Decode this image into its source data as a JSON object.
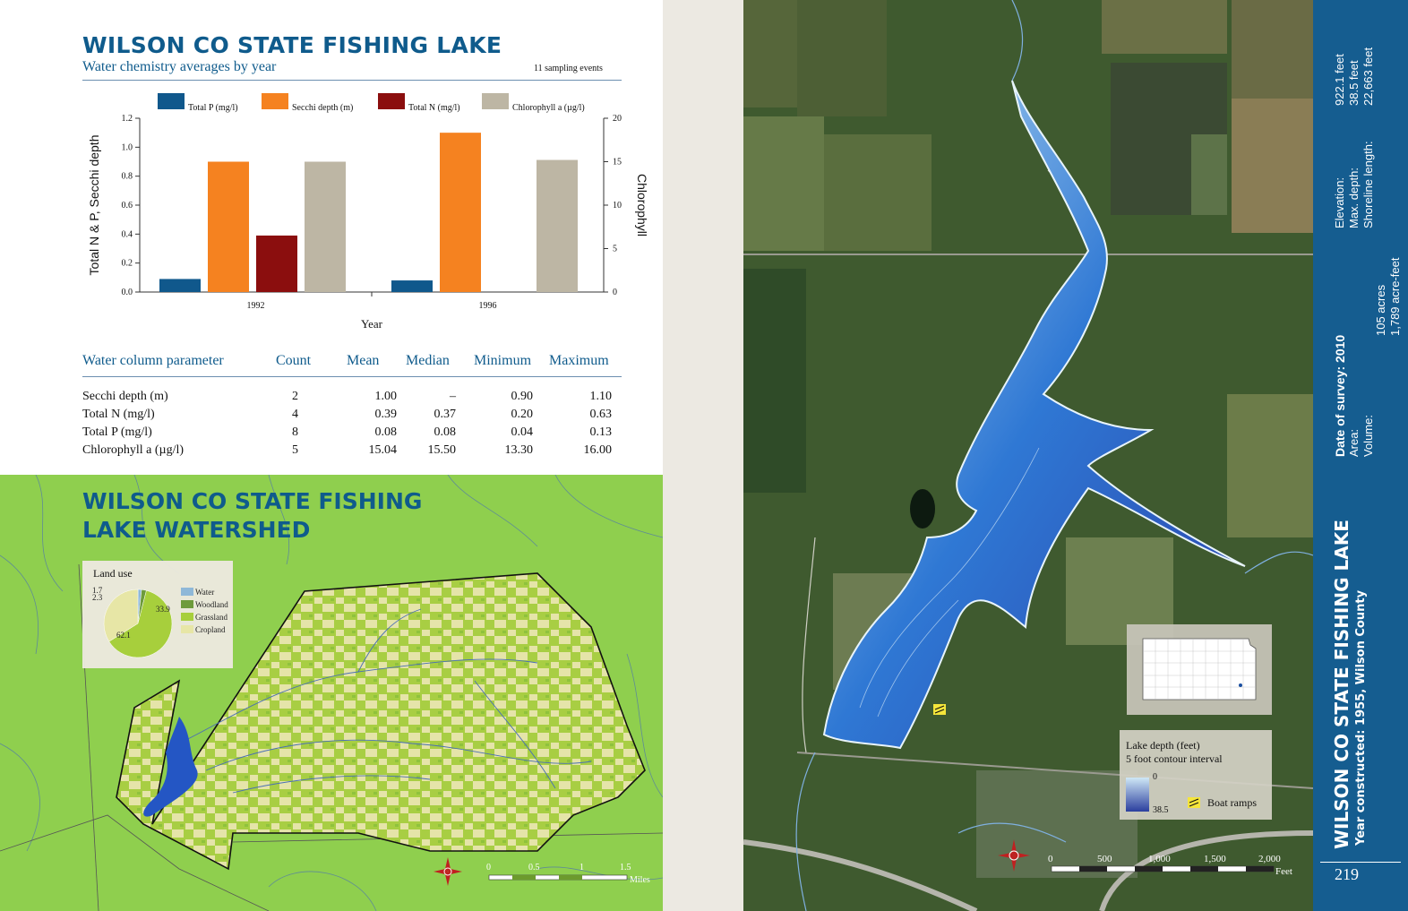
{
  "title": "WILSON CO STATE FISHING LAKE",
  "subtitle": "Water chemistry averages by year",
  "sampling_events": "11 sampling events",
  "chart_data": {
    "type": "bar",
    "categories": [
      "1992",
      "1996"
    ],
    "xlabel": "Year",
    "ylabel": "Total N & P, Secchi depth",
    "y2label": "Chlorophyll",
    "ylim": [
      0,
      1.2
    ],
    "y2lim": [
      0,
      20
    ],
    "yticks": [
      "0.0",
      "0.2",
      "0.4",
      "0.6",
      "0.8",
      "1.0",
      "1.2"
    ],
    "y2ticks": [
      "0",
      "5",
      "10",
      "15",
      "20"
    ],
    "legend_position": "top",
    "series": [
      {
        "name": "Total P (mg/l)",
        "color": "#10588c",
        "axis": "left",
        "values": [
          0.09,
          0.08
        ]
      },
      {
        "name": "Secchi depth (m)",
        "color": "#f58220",
        "axis": "left",
        "values": [
          0.9,
          1.1
        ]
      },
      {
        "name": "Total N (mg/l)",
        "color": "#8b0e0e",
        "axis": "left",
        "values": [
          0.39,
          null
        ]
      },
      {
        "name": "Chlorophyll a (µg/l)",
        "color": "#bdb6a4",
        "axis": "right",
        "values": [
          15.0,
          15.2
        ]
      }
    ]
  },
  "table": {
    "headers": [
      "Water column parameter",
      "Count",
      "Mean",
      "Median",
      "Minimum",
      "Maximum"
    ],
    "rows": [
      [
        "Secchi depth (m)",
        "2",
        "1.00",
        "–",
        "0.90",
        "1.10"
      ],
      [
        "Total N (mg/l)",
        "4",
        "0.39",
        "0.37",
        "0.20",
        "0.63"
      ],
      [
        "Total P (mg/l)",
        "8",
        "0.08",
        "0.08",
        "0.04",
        "0.13"
      ],
      [
        "Chlorophyll a (µg/l)",
        "5",
        "15.04",
        "15.50",
        "13.30",
        "16.00"
      ]
    ]
  },
  "watershed": {
    "title_line1": "WILSON CO STATE FISHING",
    "title_line2": "LAKE WATERSHED",
    "land_use": {
      "title": "Land use",
      "slices": [
        {
          "name": "Water",
          "value": 1.7,
          "color": "#8fb8d8"
        },
        {
          "name": "Woodland",
          "value": 2.3,
          "color": "#6e9b3c"
        },
        {
          "name": "Grassland",
          "value": 62.1,
          "color": "#a7cf3c"
        },
        {
          "name": "Cropland",
          "value": 33.9,
          "color": "#e7e6a6"
        }
      ],
      "labels": [
        "1.7",
        "2.3",
        "33.9",
        "62.1"
      ]
    },
    "scale": {
      "ticks": [
        "0",
        "0.5",
        "1",
        "1.5"
      ],
      "unit": "Miles"
    }
  },
  "lake_map": {
    "legend_title": "Lake depth (feet)",
    "legend_subtitle": "5 foot contour interval",
    "depth_min": "0",
    "depth_max": "38.5",
    "boat_ramps": "Boat ramps",
    "scale": {
      "ticks": [
        "0",
        "500",
        "1,000",
        "1,500",
        "2,000"
      ],
      "unit": "Feet"
    }
  },
  "sidebar": {
    "elevation_label": "Elevation:",
    "elevation_value": "922.1 feet",
    "max_depth_label": "Max. depth:",
    "max_depth_value": "38.5 feet",
    "shoreline_label": "Shoreline length:",
    "shoreline_value": "22,663 feet",
    "survey_label": "Date of survey: 2010",
    "area_label": "Area:",
    "area_value": "105 acres",
    "volume_label": "Volume:",
    "volume_value": "1,789 acre-feet",
    "lake_name": "WILSON CO STATE FISHING LAKE",
    "constructed": "Year constructed: 1955, Wilson County",
    "page_number": "219"
  }
}
